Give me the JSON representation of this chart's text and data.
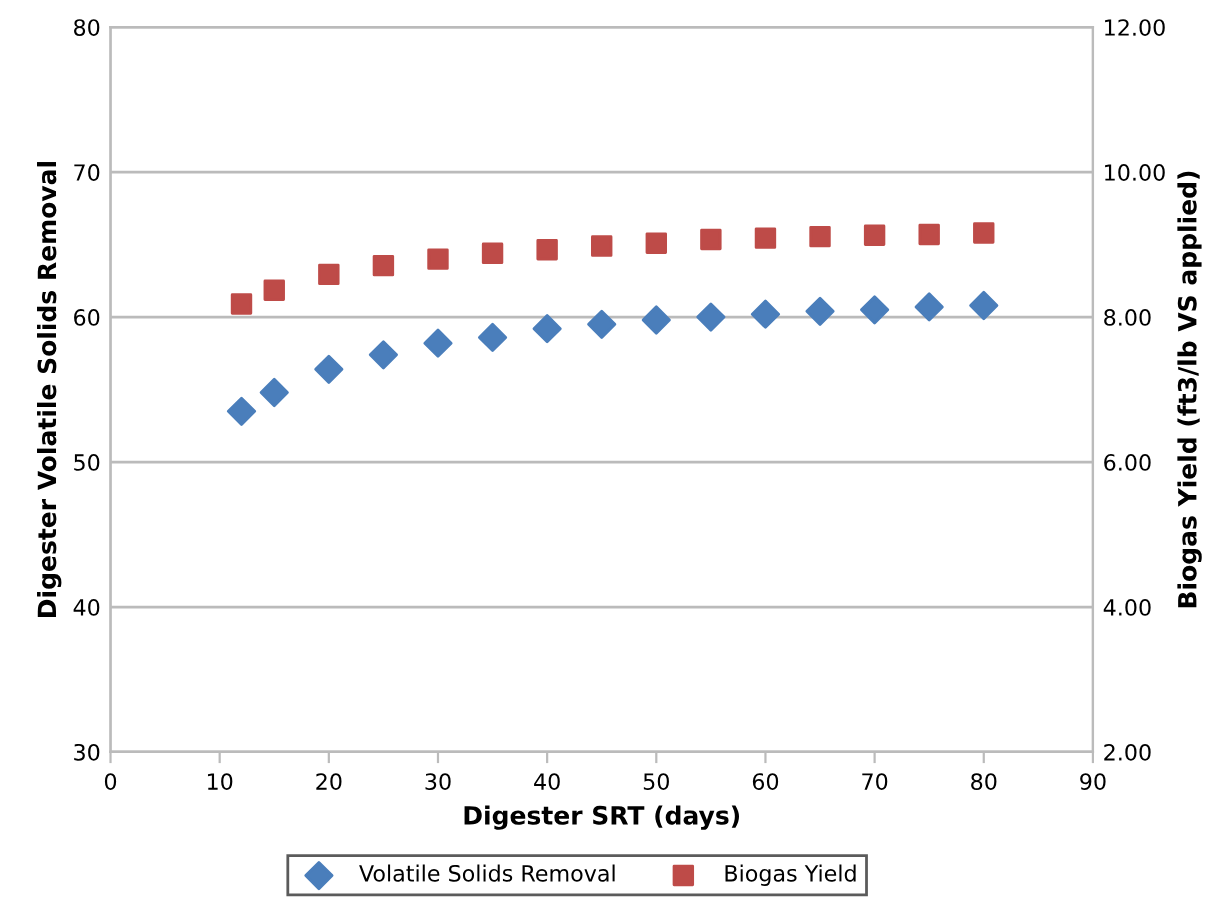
{
  "chart_data": {
    "type": "scatter",
    "xlabel": "Digester SRT (days)",
    "ylabel": "Digester Volatile Solids Removal",
    "y2label": "Biogas Yield (ft3/lb VS applied)",
    "x": [
      12,
      15,
      20,
      25,
      30,
      35,
      40,
      45,
      50,
      55,
      60,
      65,
      70,
      75,
      80
    ],
    "series": [
      {
        "name": "Volatile Solids Removal",
        "color": "#4a7ebb",
        "marker": "diamond",
        "values": [
          53.5,
          54.8,
          56.4,
          57.4,
          58.2,
          58.6,
          59.2,
          59.5,
          59.8,
          60.0,
          60.2,
          60.4,
          60.5,
          60.7,
          60.8
        ]
      },
      {
        "name": "Biogas Yield",
        "color": "#be4b48",
        "marker": "square",
        "axis": "y2",
        "values": [
          8.18,
          8.37,
          8.59,
          8.71,
          8.8,
          8.88,
          8.93,
          8.98,
          9.02,
          9.07,
          9.09,
          9.11,
          9.13,
          9.14,
          9.16
        ]
      }
    ],
    "xlim": [
      0,
      90
    ],
    "xticks": [
      0,
      10,
      20,
      30,
      40,
      50,
      60,
      70,
      80,
      90
    ],
    "ylim": [
      30,
      80
    ],
    "yticks": [
      30,
      40,
      50,
      60,
      70,
      80
    ],
    "y2lim": [
      2,
      12
    ],
    "y2ticks": [
      {
        "value": 2,
        "label": "2.00"
      },
      {
        "value": 4,
        "label": "4.00"
      },
      {
        "value": 6,
        "label": "6.00"
      },
      {
        "value": 8,
        "label": "8.00"
      },
      {
        "value": 10,
        "label": "10.00"
      },
      {
        "value": 12,
        "label": "12.00"
      }
    ],
    "grid": "y",
    "legend": "bottom"
  }
}
